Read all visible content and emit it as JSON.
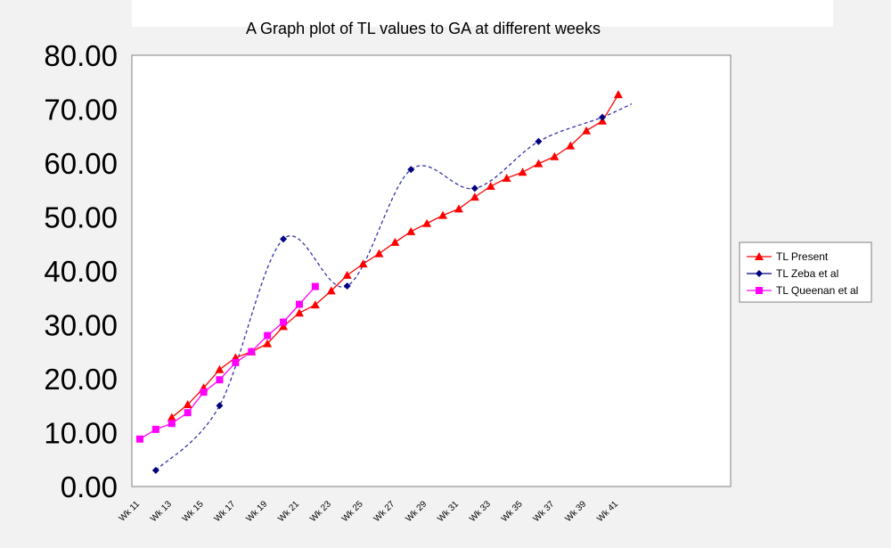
{
  "chart_data": {
    "type": "line",
    "title": "A Graph plot of TL values to GA at different weeks",
    "xlabel": "",
    "ylabel": "",
    "ylim": [
      0,
      80
    ],
    "yticks": [
      "0.00",
      "10.00",
      "20.00",
      "30.00",
      "40.00",
      "50.00",
      "60.00",
      "70.00",
      "80.00"
    ],
    "xticks": [
      "Wk 11",
      "Wk 13",
      "Wk 15",
      "Wk 17",
      "Wk 19",
      "Wk 21",
      "Wk 23",
      "Wk 25",
      "Wk 27",
      "Wk 29",
      "Wk 31",
      "Wk 33",
      "Wk 35",
      "Wk 37",
      "Wk 39",
      "Wk 41"
    ],
    "legend_position": "right",
    "grid": false,
    "series": [
      {
        "name": "TL Present",
        "color": "#ff0000",
        "marker": "triangle",
        "x": [
          13,
          14,
          15,
          16,
          17,
          18,
          19,
          20,
          21,
          22,
          23,
          24,
          25,
          26,
          27,
          28,
          29,
          30,
          31,
          32,
          33,
          34,
          35,
          36,
          37,
          38,
          39,
          40,
          41
        ],
        "y": [
          12.8,
          15.2,
          18.3,
          21.7,
          23.9,
          25.0,
          26.5,
          29.7,
          32.2,
          33.7,
          36.3,
          39.2,
          41.3,
          43.2,
          45.3,
          47.3,
          48.8,
          50.3,
          51.5,
          53.7,
          55.7,
          57.2,
          58.3,
          59.9,
          61.2,
          63.2,
          66.0,
          67.8,
          72.7
        ]
      },
      {
        "name": "TL Zeba et al",
        "color": "#000080",
        "marker": "diamond",
        "trendline_color": "#3333aa",
        "x": [
          12,
          16,
          20,
          24,
          28,
          32,
          36,
          40
        ],
        "y": [
          3.0,
          15.0,
          45.9,
          37.2,
          58.8,
          55.3,
          64.0,
          68.5
        ]
      },
      {
        "name": "TL Queenan et al",
        "color": "#ff00ff",
        "marker": "square",
        "x": [
          11,
          12,
          13,
          14,
          15,
          16,
          17,
          18,
          19,
          20,
          21,
          22
        ],
        "y": [
          8.8,
          10.6,
          11.7,
          13.7,
          17.5,
          19.8,
          23.0,
          25.0,
          28.0,
          30.5,
          33.8,
          37.1
        ]
      }
    ]
  }
}
